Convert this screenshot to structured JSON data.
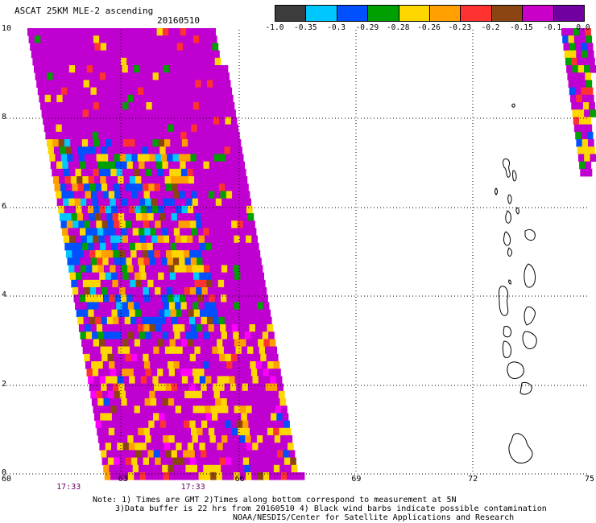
{
  "header": {
    "title": "ASCAT 25KM MLE-2 ascending",
    "date": "20160510"
  },
  "colorbar": {
    "labels": [
      "-1.0",
      "-0.35",
      "-0.3",
      "-0.29",
      "-0.28",
      "-0.26",
      "-0.23",
      "-0.2",
      "-0.15",
      "-0.1",
      "0.0"
    ],
    "colors": [
      "#3c3c3c",
      "#00c8ff",
      "#0050ff",
      "#00a000",
      "#ffd700",
      "#ffa000",
      "#ff3232",
      "#8b4513",
      "#c800c8",
      "#7000a0"
    ]
  },
  "map": {
    "x_ticks": [
      "60",
      "63",
      "66",
      "69",
      "72",
      "75"
    ],
    "y_ticks": [
      "0",
      "2",
      "4",
      "6",
      "8",
      "10"
    ],
    "lon_range": [
      60,
      75
    ],
    "lat_range": [
      0,
      10
    ],
    "swath_times": [
      {
        "label": "17:33",
        "lon": 61.6
      },
      {
        "label": "17:33",
        "lon": 64.8
      }
    ],
    "palette": [
      "#c000d0",
      "#ffd700",
      "#0050ff",
      "#00a000",
      "#ffa000",
      "#ff3232",
      "#00c8ff",
      "#8b4513",
      "#ff00ff",
      "#3c3c3c"
    ]
  },
  "notes": {
    "line1": "Note: 1) Times are GMT 2)Times along bottom correspond to measurement at 5N",
    "line2": "3)Data buffer is 22 hrs from 20160510 4) Black wind barbs indicate possible contamination",
    "line3": "NOAA/NESDIS/Center for Satellite Applications and Research"
  }
}
